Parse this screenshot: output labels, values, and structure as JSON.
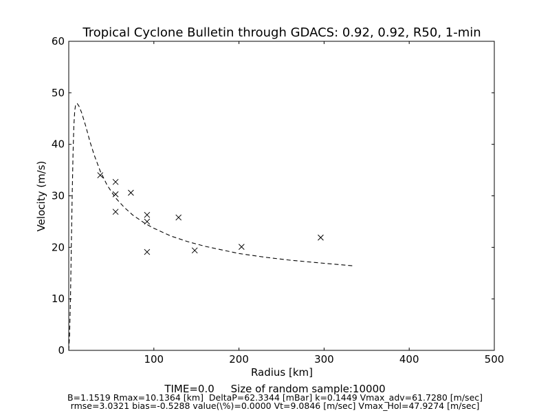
{
  "chart_data": {
    "type": "scatter",
    "title": "Tropical Cyclone Bulletin through GDACS: 0.92, 0.92, R50, 1-min",
    "xlabel": "Radius [km]",
    "ylabel": "Velocity (m/s)",
    "xlim": [
      0,
      500
    ],
    "ylim": [
      0,
      60
    ],
    "xticks": [
      100,
      200,
      300,
      400,
      500
    ],
    "yticks": [
      0,
      10,
      20,
      30,
      40,
      50,
      60
    ],
    "grid": false,
    "observations": {
      "marker": "x",
      "color": "#000000",
      "points": [
        [
          37,
          34.0
        ],
        [
          55,
          32.7
        ],
        [
          55,
          30.3
        ],
        [
          55,
          26.9
        ],
        [
          73,
          30.6
        ],
        [
          92,
          26.3
        ],
        [
          92,
          25.0
        ],
        [
          92,
          19.1
        ],
        [
          129,
          25.8
        ],
        [
          148,
          19.4
        ],
        [
          203,
          20.1
        ],
        [
          296,
          21.9
        ]
      ]
    },
    "profile_fit": {
      "style": "dashed",
      "color": "#000000",
      "points": [
        [
          0,
          0
        ],
        [
          1,
          3
        ],
        [
          2,
          10
        ],
        [
          3,
          20
        ],
        [
          4,
          30
        ],
        [
          5,
          38
        ],
        [
          6,
          43.5
        ],
        [
          7,
          46.5
        ],
        [
          8,
          47.6
        ],
        [
          9,
          47.9
        ],
        [
          10,
          47.9
        ],
        [
          12,
          47.4
        ],
        [
          15,
          46.2
        ],
        [
          20,
          43.5
        ],
        [
          25,
          40.5
        ],
        [
          30,
          37.9
        ],
        [
          37,
          34.8
        ],
        [
          45,
          32.1
        ],
        [
          55,
          29.6
        ],
        [
          65,
          27.8
        ],
        [
          75,
          26.3
        ],
        [
          90,
          24.6
        ],
        [
          100,
          23.7
        ],
        [
          120,
          22.2
        ],
        [
          140,
          21.1
        ],
        [
          160,
          20.2
        ],
        [
          180,
          19.5
        ],
        [
          200,
          18.8
        ],
        [
          230,
          18.1
        ],
        [
          260,
          17.5
        ],
        [
          300,
          16.9
        ],
        [
          335,
          16.4
        ]
      ]
    }
  },
  "footer": {
    "line1": "TIME=0.0     Size of random sample:10000",
    "line2": "B=1.1519 Rmax=10.1364 [km]  DeltaP=62.3344 [mBar] k=0.1449 Vmax_adv=61.7280 [m/sec]",
    "line3": "rmse=3.0321 bias=-0.5288 value(\\%)=0.0000 Vt=9.0846 [m/sec] Vmax_Hol=47.9274 [m/sec]"
  }
}
